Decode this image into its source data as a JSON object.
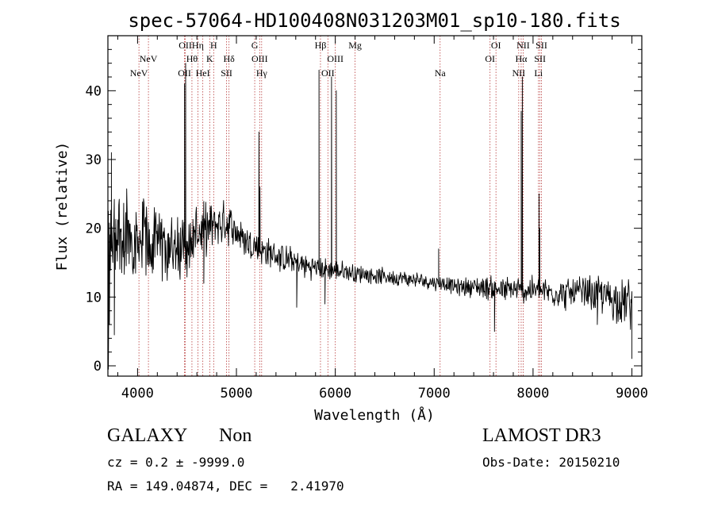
{
  "chart_data": {
    "type": "line",
    "title": "spec-57064-HD100408N031203M01_sp10-180.fits",
    "xlabel": "Wavelength (Å)",
    "ylabel": "Flux (relative)",
    "xlim": [
      3700,
      9100
    ],
    "ylim": [
      -1.5,
      48
    ],
    "xticks": [
      4000,
      5000,
      6000,
      7000,
      8000,
      9000
    ],
    "yticks": [
      0,
      10,
      20,
      30,
      40
    ],
    "xtick_labels": [
      "4000",
      "5000",
      "6000",
      "7000",
      "8000",
      "9000"
    ],
    "ytick_labels": [
      "0",
      "10",
      "20",
      "30",
      "40"
    ],
    "series": [
      {
        "name": "spectrum",
        "x_start": 3700,
        "x_end": 9000,
        "anchors": [
          [
            3700,
            15
          ],
          [
            3750,
            18
          ],
          [
            3800,
            20
          ],
          [
            3900,
            19
          ],
          [
            4000,
            18.5
          ],
          [
            4200,
            17.5
          ],
          [
            4400,
            17
          ],
          [
            4500,
            17.5
          ],
          [
            4600,
            19.5
          ],
          [
            4700,
            20
          ],
          [
            4800,
            20.5
          ],
          [
            4900,
            21
          ],
          [
            5000,
            19.5
          ],
          [
            5100,
            18
          ],
          [
            5300,
            16.5
          ],
          [
            5500,
            15.5
          ],
          [
            5700,
            14.5
          ],
          [
            5900,
            14
          ],
          [
            6200,
            13.5
          ],
          [
            6500,
            13
          ],
          [
            6800,
            12.5
          ],
          [
            7100,
            12
          ],
          [
            7200,
            11.5
          ],
          [
            7500,
            11.5
          ],
          [
            7700,
            11
          ],
          [
            8000,
            11
          ],
          [
            8300,
            10.5
          ],
          [
            8600,
            10.5
          ],
          [
            8900,
            9.5
          ],
          [
            9000,
            9
          ]
        ],
        "noise": [
          [
            3700,
            8
          ],
          [
            4000,
            6
          ],
          [
            4400,
            5
          ],
          [
            4800,
            3.5
          ],
          [
            5200,
            2.5
          ],
          [
            5800,
            1.8
          ],
          [
            6500,
            1.2
          ],
          [
            7200,
            1.2
          ],
          [
            7600,
            2
          ],
          [
            8200,
            2.2
          ],
          [
            8700,
            3
          ],
          [
            9000,
            4
          ]
        ],
        "peaks": [
          [
            3735,
            31
          ],
          [
            4475,
            41
          ],
          [
            4486,
            44
          ],
          [
            5228,
            34
          ],
          [
            5238,
            26
          ],
          [
            5835,
            43
          ],
          [
            5962,
            42
          ],
          [
            6010,
            40
          ],
          [
            7045,
            17
          ],
          [
            7880,
            37
          ],
          [
            7892,
            42
          ],
          [
            8060,
            25
          ],
          [
            8067,
            20
          ]
        ],
        "dips": [
          [
            3705,
            -0.5
          ],
          [
            3715,
            6
          ],
          [
            3765,
            4.5
          ],
          [
            4670,
            12
          ],
          [
            5610,
            8.5
          ],
          [
            5895,
            9
          ],
          [
            7610,
            5
          ],
          [
            8650,
            6
          ],
          [
            9000,
            1
          ]
        ]
      }
    ],
    "lines": [
      {
        "wavelength": 4014,
        "label": "NeV",
        "row": 3
      },
      {
        "wavelength": 4110,
        "label": "NeV",
        "row": 2
      },
      {
        "wavelength": 4475,
        "label": "OII",
        "row": 3
      },
      {
        "wavelength": 4483,
        "label": "OII",
        "row": 1
      },
      {
        "wavelength": 4550,
        "label": "Hθ",
        "row": 2
      },
      {
        "wavelength": 4610,
        "label": "Hη",
        "row": 1
      },
      {
        "wavelength": 4660,
        "label": "HeI",
        "row": 3
      },
      {
        "wavelength": 4730,
        "label": "K",
        "row": 2
      },
      {
        "wavelength": 4770,
        "label": "H",
        "row": 1
      },
      {
        "wavelength": 4900,
        "label": "SII",
        "row": 3
      },
      {
        "wavelength": 4925,
        "label": "Hδ",
        "row": 2
      },
      {
        "wavelength": 5185,
        "label": "G",
        "row": 1
      },
      {
        "wavelength": 5235,
        "label": "OIII",
        "row": 2
      },
      {
        "wavelength": 5255,
        "label": "Hγ",
        "row": 3
      },
      {
        "wavelength": 5850,
        "label": "Hβ",
        "row": 1
      },
      {
        "wavelength": 5925,
        "label": "OII",
        "row": 3
      },
      {
        "wavelength": 6000,
        "label": "OIII",
        "row": 2
      },
      {
        "wavelength": 6200,
        "label": "Mg",
        "row": 1
      },
      {
        "wavelength": 7060,
        "label": "Na",
        "row": 3
      },
      {
        "wavelength": 7565,
        "label": "OI",
        "row": 2
      },
      {
        "wavelength": 7625,
        "label": "OI",
        "row": 1
      },
      {
        "wavelength": 7855,
        "label": "NII",
        "row": 3
      },
      {
        "wavelength": 7880,
        "label": "Hα",
        "row": 2
      },
      {
        "wavelength": 7900,
        "label": "NII",
        "row": 1
      },
      {
        "wavelength": 8055,
        "label": "Li",
        "row": 3
      },
      {
        "wavelength": 8070,
        "label": "SII",
        "row": 2
      },
      {
        "wavelength": 8085,
        "label": "SII",
        "row": 1
      }
    ]
  },
  "info": {
    "class": "GALAXY",
    "subclass": "Non",
    "survey": "LAMOST DR3",
    "cz": "cz = 0.2 ± -9999.0",
    "obs_date": "Obs-Date: 20150210",
    "radec": "RA = 149.04874, DEC =   2.41970"
  },
  "colors": {
    "line_marker": "#b83c3c",
    "spectrum": "#000000",
    "frame": "#000000"
  }
}
